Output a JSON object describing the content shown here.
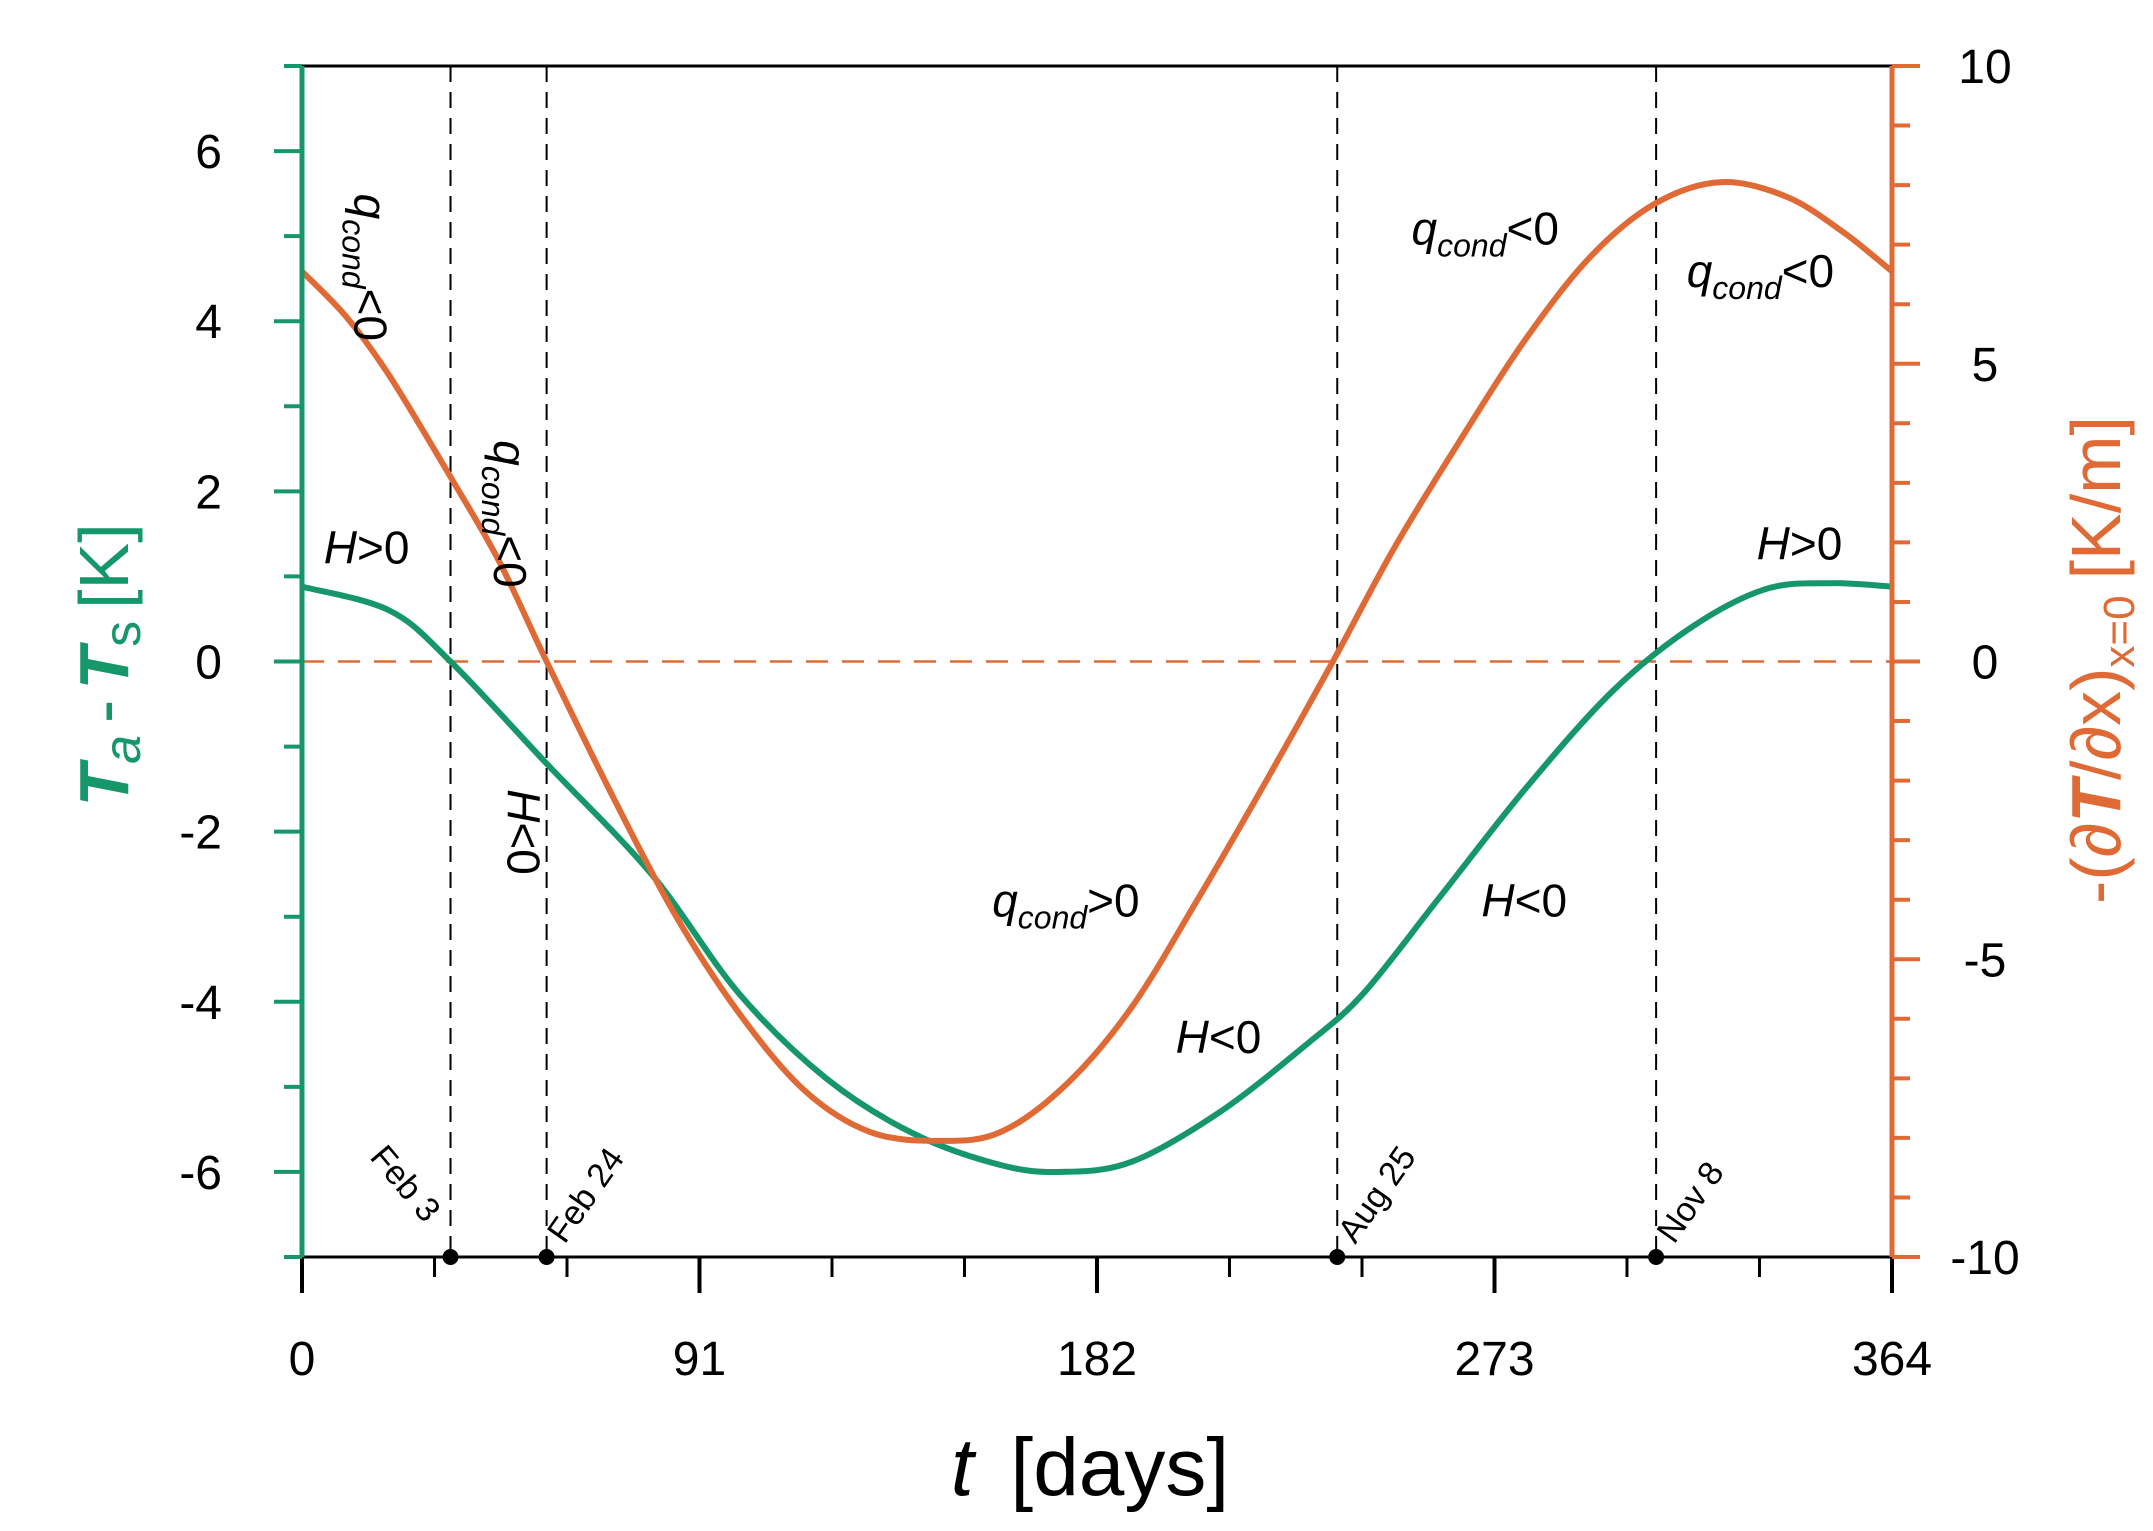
{
  "colors": {
    "green": "#16976a",
    "orange": "#e06a35",
    "black": "#000000"
  },
  "chart_data": {
    "type": "line",
    "title": "",
    "xlabel": {
      "italic": "t",
      "rest": "[days]"
    },
    "ylabel_left": {
      "T1": "T",
      "sub1": "a",
      "dash": "-",
      "T2": "T",
      "sub2": "s",
      "unit": "[K]"
    },
    "ylabel_right": {
      "prefix": "-(∂",
      "T": "T",
      "slash": "/∂x)",
      "sub": "x=0",
      "unit": "[K/m]"
    },
    "x_range": [
      0,
      364
    ],
    "x_ticks": [
      0,
      91,
      182,
      273,
      364
    ],
    "x_minor_step": 30.333,
    "y_left_range": [
      -7,
      7
    ],
    "y_left_ticks": [
      -6,
      -4,
      -2,
      0,
      2,
      4,
      6
    ],
    "y_right_range": [
      -10,
      10
    ],
    "y_right_ticks": [
      -10,
      -5,
      0,
      5,
      10
    ],
    "zero_line": {
      "axis": "left",
      "value": 0,
      "style": "dashed"
    },
    "series": [
      {
        "name": "Ta - Ts",
        "axis": "left",
        "color": "#16976a",
        "x": [
          0,
          20,
          34,
          56,
          80,
          100,
          120,
          140,
          160,
          174,
          190,
          210,
          230,
          243,
          260,
          280,
          300,
          318,
          335,
          350,
          364
        ],
        "y": [
          0.88,
          0.6,
          0.0,
          -1.2,
          -2.5,
          -3.9,
          -4.9,
          -5.55,
          -5.92,
          -6.0,
          -5.88,
          -5.3,
          -4.5,
          -3.9,
          -2.8,
          -1.5,
          -0.35,
          0.4,
          0.85,
          0.92,
          0.88
        ]
      },
      {
        "name": "-(dT/dx)x=0",
        "axis": "right",
        "color": "#e06a35",
        "x": [
          0,
          10,
          20,
          34,
          45,
          56,
          70,
          85,
          100,
          115,
          130,
          146,
          160,
          175,
          190,
          205,
          220,
          236,
          250,
          265,
          280,
          295,
          310,
          325,
          340,
          353,
          364
        ],
        "y": [
          6.55,
          5.8,
          4.8,
          3.1,
          1.7,
          0.0,
          -2.1,
          -4.2,
          -5.9,
          -7.2,
          -7.9,
          -8.05,
          -7.9,
          -7.1,
          -5.8,
          -4.0,
          -2.1,
          0.0,
          1.9,
          3.7,
          5.4,
          6.8,
          7.7,
          8.05,
          7.8,
          7.2,
          6.55
        ]
      }
    ],
    "vertical_markers": [
      {
        "x": 34,
        "label": "Feb 3"
      },
      {
        "x": 56,
        "label": "Feb 24"
      },
      {
        "x": 237,
        "label": "Aug 25"
      },
      {
        "x": 310,
        "label": "Nov 8"
      }
    ],
    "annotations": [
      {
        "kind": "q",
        "sub": "cond",
        "rel": "<0",
        "x": 12,
        "y_left": 5.5,
        "rotate": true
      },
      {
        "kind": "q",
        "sub": "cond",
        "rel": "<0",
        "x": 44,
        "y_left": 2.6,
        "rotate": true
      },
      {
        "kind": "q",
        "sub": "cond",
        "rel": "<0",
        "x": 254,
        "y_left": 4.9,
        "rotate": false
      },
      {
        "kind": "q",
        "sub": "cond",
        "rel": "<0",
        "x": 317,
        "y_left": 4.4,
        "rotate": false
      },
      {
        "kind": "q",
        "sub": "cond",
        "rel": ">0",
        "x": 158,
        "y_left": -3.0,
        "rotate": false
      },
      {
        "kind": "H",
        "rel": ">0",
        "x": 5,
        "y_left": 1.15,
        "rotate": false
      },
      {
        "kind": "H",
        "rel": "<0",
        "x": 47,
        "y_left": -1.5,
        "rotate": true
      },
      {
        "kind": "H",
        "rel": "<0",
        "x": 200,
        "y_left": -4.6,
        "rotate": false
      },
      {
        "kind": "H",
        "rel": "<0",
        "x": 270,
        "y_left": -3.0,
        "rotate": false
      },
      {
        "kind": "H",
        "rel": ">0",
        "x": 333,
        "y_left": 1.2,
        "rotate": false
      }
    ]
  }
}
